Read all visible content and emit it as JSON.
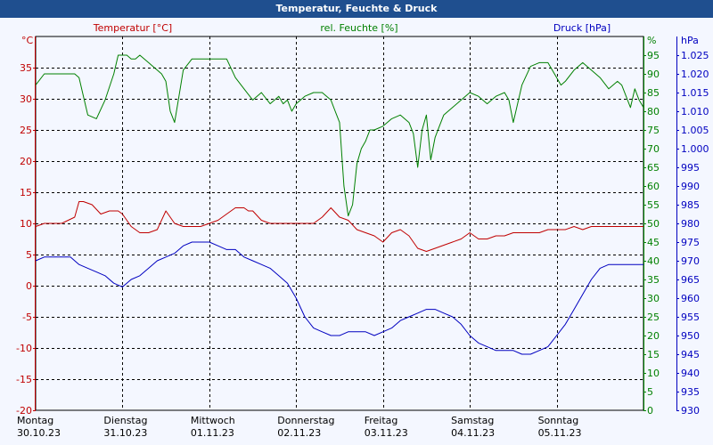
{
  "window": {
    "title": "Temperatur, Feuchte & Druck"
  },
  "colors": {
    "temperature": "#c00000",
    "humidity": "#008000",
    "pressure": "#0000c0",
    "grid": "#000000"
  },
  "chart_data": {
    "type": "line",
    "title": "Temperatur, Feuchte & Druck",
    "legend": {
      "temperature": "Temperatur [°C]",
      "humidity": "rel. Feuchte [%]",
      "pressure": "Druck [hPa]"
    },
    "axes": {
      "left": {
        "unit": "°C",
        "min": -20,
        "max": 40,
        "ticks": [
          -20,
          -15,
          -10,
          -5,
          0,
          5,
          10,
          15,
          20,
          25,
          30,
          35
        ],
        "tick_labels": [
          "-20",
          "-15",
          "-10",
          "-5",
          "0",
          "5",
          "10",
          "15",
          "20",
          "25",
          "30",
          "35"
        ]
      },
      "right1": {
        "unit": "%",
        "min": 0,
        "max": 100,
        "ticks": [
          0,
          5,
          10,
          15,
          20,
          25,
          30,
          35,
          40,
          45,
          50,
          55,
          60,
          65,
          70,
          75,
          80,
          85,
          90,
          95
        ],
        "tick_labels": [
          "0",
          "5",
          "10",
          "15",
          "20",
          "25",
          "30",
          "35",
          "40",
          "45",
          "50",
          "55",
          "60",
          "65",
          "70",
          "75",
          "80",
          "85",
          "90",
          "95"
        ]
      },
      "right2": {
        "unit": "hPa",
        "min": 930,
        "max": 1030,
        "ticks": [
          930,
          935,
          940,
          945,
          950,
          955,
          960,
          965,
          970,
          975,
          980,
          985,
          990,
          995,
          1000,
          1005,
          1010,
          1015,
          1020,
          1025
        ],
        "tick_labels": [
          "930",
          "935",
          "940",
          "945",
          "950",
          "955",
          "960",
          "965",
          "970",
          "975",
          "980",
          "985",
          "990",
          "995",
          "1.000",
          "1.005",
          "1.010",
          "1.015",
          "1.020",
          "1.025"
        ]
      }
    },
    "x_days": [
      {
        "day": "Montag",
        "date": "30.10.23"
      },
      {
        "day": "Dienstag",
        "date": "31.10.23"
      },
      {
        "day": "Mittwoch",
        "date": "01.11.23"
      },
      {
        "day": "Donnerstag",
        "date": "02.11.23"
      },
      {
        "day": "Freitag",
        "date": "03.11.23"
      },
      {
        "day": "Samstag",
        "date": "04.11.23"
      },
      {
        "day": "Sonntag",
        "date": "05.11.23"
      }
    ],
    "x_range_days": [
      0,
      7
    ],
    "grid": true,
    "series": [
      {
        "name": "Temperatur [°C]",
        "axis": "left",
        "x": [
          0,
          0.1,
          0.3,
          0.45,
          0.5,
          0.55,
          0.65,
          0.75,
          0.85,
          0.9,
          0.95,
          1.0,
          1.1,
          1.2,
          1.3,
          1.4,
          1.5,
          1.6,
          1.7,
          1.75,
          1.8,
          1.9,
          2.0,
          2.1,
          2.2,
          2.3,
          2.4,
          2.45,
          2.5,
          2.6,
          2.7,
          2.8,
          2.9,
          3.0,
          3.1,
          3.2,
          3.3,
          3.4,
          3.5,
          3.6,
          3.7,
          3.8,
          3.9,
          4.0,
          4.1,
          4.2,
          4.3,
          4.4,
          4.5,
          4.6,
          4.7,
          4.8,
          4.9,
          5.0,
          5.1,
          5.2,
          5.3,
          5.4,
          5.5,
          5.6,
          5.7,
          5.8,
          5.9,
          6.0,
          6.1,
          6.2,
          6.3,
          6.4,
          6.5,
          6.6,
          6.7,
          6.8,
          6.9,
          7.0
        ],
        "values": [
          9.5,
          10,
          10,
          11,
          13.5,
          13.5,
          13,
          11.5,
          12,
          12,
          12,
          11.5,
          9.5,
          8.5,
          8.5,
          9,
          12,
          10,
          9.5,
          9.5,
          9.5,
          9.5,
          10,
          10.5,
          11.5,
          12.5,
          12.5,
          12,
          12,
          10.5,
          10,
          10,
          10,
          10,
          10,
          10,
          11,
          12.5,
          11,
          10.5,
          9,
          8.5,
          8,
          7,
          8.5,
          9,
          8,
          6,
          5.5,
          6,
          6.5,
          7,
          7.5,
          8.5,
          7.5,
          7.5,
          8,
          8,
          8.5,
          8.5,
          8.5,
          8.5,
          9,
          9,
          9,
          9.5,
          9,
          9.5,
          9.5,
          9.5,
          9.5,
          9.5,
          9.5,
          9.5
        ]
      },
      {
        "name": "rel. Feuchte [%]",
        "axis": "right1",
        "x": [
          0,
          0.1,
          0.2,
          0.3,
          0.35,
          0.45,
          0.5,
          0.55,
          0.6,
          0.7,
          0.8,
          0.9,
          0.95,
          1.0,
          1.05,
          1.1,
          1.15,
          1.2,
          1.3,
          1.4,
          1.45,
          1.5,
          1.55,
          1.6,
          1.65,
          1.7,
          1.8,
          1.9,
          2.0,
          2.1,
          2.2,
          2.3,
          2.4,
          2.5,
          2.6,
          2.7,
          2.8,
          2.85,
          2.9,
          2.95,
          3.0,
          3.1,
          3.2,
          3.3,
          3.4,
          3.45,
          3.5,
          3.55,
          3.6,
          3.65,
          3.7,
          3.75,
          3.8,
          3.85,
          3.9,
          4.0,
          4.1,
          4.2,
          4.3,
          4.35,
          4.4,
          4.45,
          4.5,
          4.55,
          4.6,
          4.65,
          4.7,
          4.8,
          4.9,
          5.0,
          5.1,
          5.2,
          5.3,
          5.4,
          5.45,
          5.5,
          5.6,
          5.7,
          5.8,
          5.9,
          6.0,
          6.05,
          6.1,
          6.2,
          6.3,
          6.4,
          6.5,
          6.6,
          6.7,
          6.75,
          6.8,
          6.85,
          6.9,
          6.95,
          7.0
        ],
        "values": [
          87,
          90,
          90,
          90,
          90,
          90,
          89,
          84,
          79,
          78,
          83,
          90,
          95,
          95,
          95,
          94,
          94,
          95,
          93,
          91,
          90,
          88,
          80,
          77,
          84,
          91,
          94,
          94,
          94,
          94,
          94,
          89,
          86,
          83,
          85,
          82,
          84,
          82,
          83,
          80,
          82,
          84,
          85,
          85,
          83,
          80,
          77,
          60,
          52,
          55,
          66,
          70,
          72,
          75,
          75,
          76,
          78,
          79,
          77,
          74,
          65,
          75,
          79,
          67,
          73,
          76,
          79,
          81,
          83,
          85,
          84,
          82,
          84,
          85,
          83,
          77,
          87,
          92,
          93,
          93,
          89,
          87,
          88,
          91,
          93,
          91,
          89,
          86,
          88,
          87,
          84,
          81,
          86,
          83,
          81
        ],
        "note": ""
      },
      {
        "name": "Druck [hPa]",
        "axis": "right2",
        "x": [
          0,
          0.1,
          0.2,
          0.3,
          0.4,
          0.5,
          0.6,
          0.7,
          0.8,
          0.9,
          1.0,
          1.1,
          1.2,
          1.3,
          1.4,
          1.5,
          1.6,
          1.7,
          1.8,
          1.9,
          2.0,
          2.1,
          2.2,
          2.3,
          2.4,
          2.5,
          2.6,
          2.7,
          2.8,
          2.9,
          3.0,
          3.1,
          3.2,
          3.3,
          3.4,
          3.5,
          3.6,
          3.7,
          3.8,
          3.9,
          4.0,
          4.1,
          4.2,
          4.3,
          4.4,
          4.5,
          4.6,
          4.7,
          4.8,
          4.9,
          5.0,
          5.1,
          5.2,
          5.3,
          5.4,
          5.5,
          5.6,
          5.7,
          5.8,
          5.9,
          6.0,
          6.1,
          6.2,
          6.3,
          6.4,
          6.5,
          6.6,
          6.7,
          6.8,
          6.9,
          7.0
        ],
        "values": [
          970,
          971,
          971,
          971,
          971,
          969,
          968,
          967,
          966,
          964,
          963,
          965,
          966,
          968,
          970,
          971,
          972,
          974,
          975,
          975,
          975,
          974,
          973,
          973,
          971,
          970,
          969,
          968,
          966,
          964,
          960,
          955,
          952,
          951,
          950,
          950,
          951,
          951,
          951,
          950,
          951,
          952,
          954,
          955,
          956,
          957,
          957,
          956,
          955,
          953,
          950,
          948,
          947,
          946,
          946,
          946,
          945,
          945,
          946,
          947,
          950,
          953,
          957,
          961,
          965,
          968,
          969,
          969,
          969,
          969,
          969
        ],
        "note": ""
      }
    ]
  }
}
